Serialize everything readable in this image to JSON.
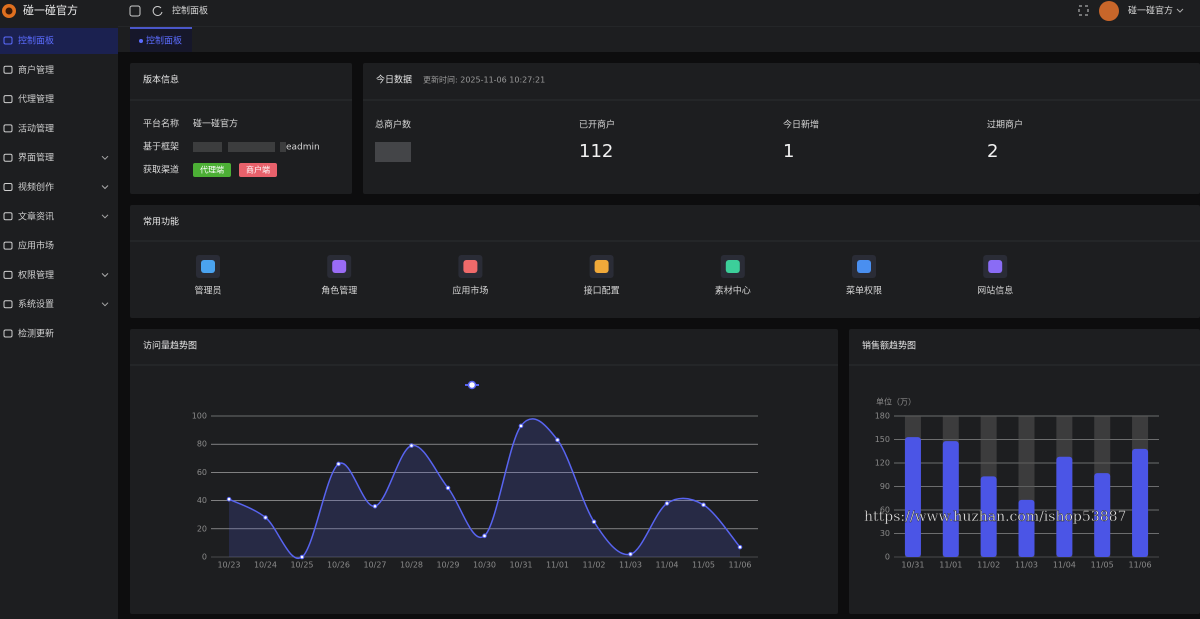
{
  "sidebar": {
    "brand": "碰一碰官方",
    "menu": [
      {
        "label": "控制面板",
        "active": true
      },
      {
        "label": "商户管理"
      },
      {
        "label": "代理管理"
      },
      {
        "label": "活动管理"
      },
      {
        "label": "界面管理",
        "expandable": true
      },
      {
        "label": "视频创作",
        "expandable": true
      },
      {
        "label": "文章资讯",
        "expandable": true
      },
      {
        "label": "应用市场"
      },
      {
        "label": "权限管理",
        "expandable": true
      },
      {
        "label": "系统设置",
        "expandable": true
      },
      {
        "label": "检测更新"
      }
    ]
  },
  "topbar": {
    "breadcrumb": "控制面板",
    "user": "碰一碰官方"
  },
  "tabs": [
    {
      "label": "控制面板",
      "active": true
    }
  ],
  "version_card": {
    "title": "版本信息",
    "rows": [
      {
        "label": "平台名称",
        "value": "碰一碰官方"
      },
      {
        "label": "基于框架",
        "value": "eadmin"
      },
      {
        "label": "获取渠道",
        "tags": [
          {
            "text": "代理端",
            "color": "#4caf35"
          },
          {
            "text": "商户端",
            "color": "#e8616b"
          }
        ]
      }
    ]
  },
  "today_card": {
    "title": "今日数据",
    "updated": "更新时间: 2025-11-06 10:27:21",
    "stats": [
      {
        "label": "总商户数"
      },
      {
        "label": "已开商户",
        "value": 112
      },
      {
        "label": "今日新增",
        "value": 1
      },
      {
        "label": "过期商户",
        "value": 2
      }
    ]
  },
  "shortcuts": {
    "title": "常用功能",
    "items": [
      {
        "label": "管理员",
        "color": "#4aa3f0"
      },
      {
        "label": "角色管理",
        "color": "#9a6cf5"
      },
      {
        "label": "应用市场",
        "color": "#f06a6a"
      },
      {
        "label": "接口配置",
        "color": "#f0a93a"
      },
      {
        "label": "素材中心",
        "color": "#3ccf9a"
      },
      {
        "label": "菜单权限",
        "color": "#4a8ff0"
      },
      {
        "label": "网站信息",
        "color": "#8a6cf5"
      }
    ]
  },
  "chart_data": [
    {
      "type": "line",
      "title": "访问量趋势图",
      "categories": [
        "10/23",
        "10/24",
        "10/25",
        "10/26",
        "10/27",
        "10/28",
        "10/29",
        "10/30",
        "10/31",
        "11/01",
        "11/02",
        "11/03",
        "11/04",
        "11/05",
        "11/06"
      ],
      "series": [
        {
          "color": "#5864f0",
          "values": [
            41,
            28,
            0,
            66,
            36,
            79,
            49,
            15,
            93,
            83,
            25,
            2,
            38,
            37,
            7
          ]
        }
      ],
      "ylim": [
        0,
        100
      ],
      "yticks": [
        0,
        20,
        40,
        60,
        80,
        100
      ],
      "grid": true,
      "smooth": true,
      "area": true
    },
    {
      "type": "bar",
      "title": "销售额趋势图",
      "y_label": "单位（万）",
      "categories": [
        "10/31",
        "11/01",
        "11/02",
        "11/03",
        "11/04",
        "11/05",
        "11/06"
      ],
      "values": [
        153,
        148,
        103,
        73,
        128,
        107,
        138
      ],
      "color": "#4b55e6",
      "ylim": [
        0,
        180
      ],
      "yticks": [
        0,
        30,
        60,
        90,
        120,
        150,
        180
      ],
      "grid": true,
      "bar_background": true
    }
  ],
  "watermark": "https://www.huzhan.com/ishop53887"
}
